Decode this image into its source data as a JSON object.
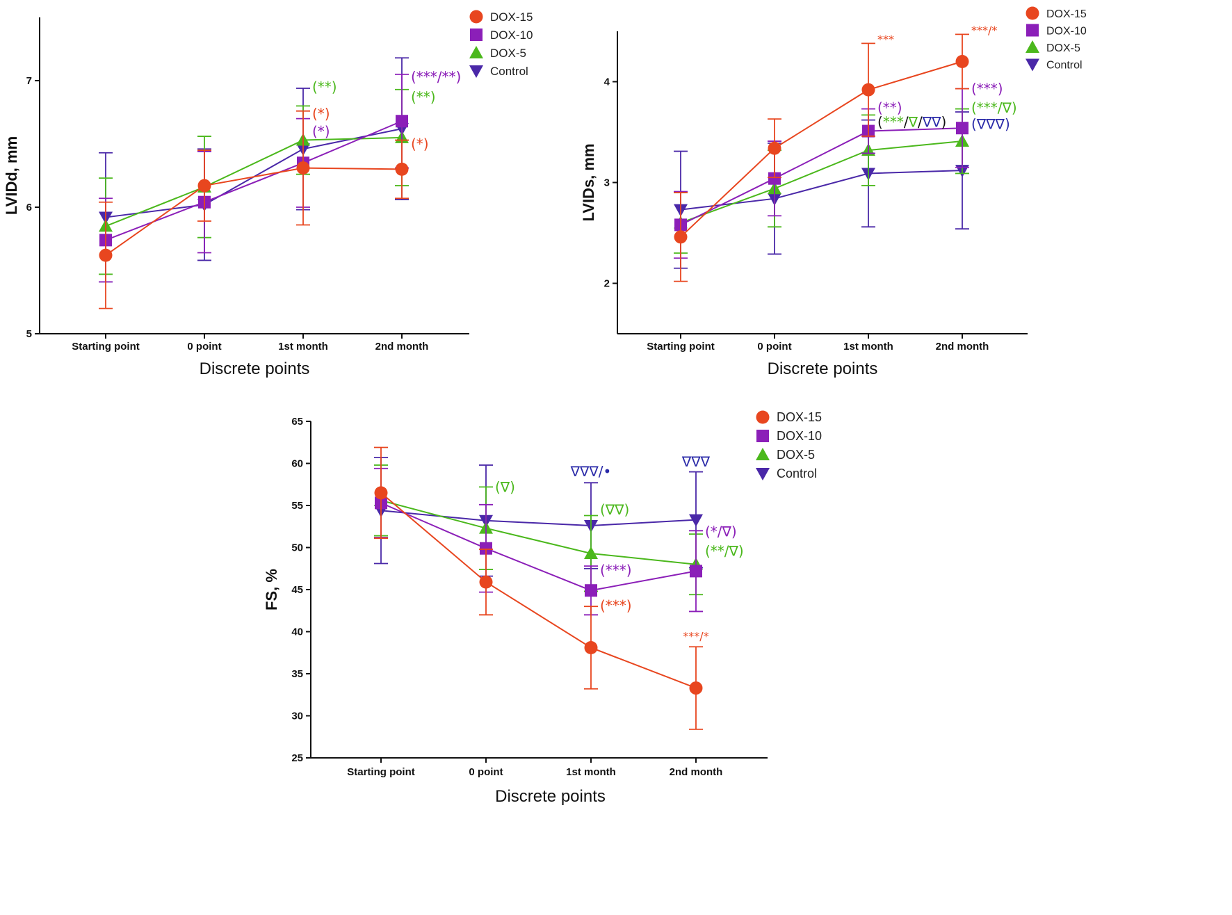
{
  "colors": {
    "DOX-15": "#e8461f",
    "DOX-10": "#8b1fb8",
    "DOX-5": "#4bb81c",
    "Control": "#4a28a8",
    "annot_blue": "#2a2aa8",
    "annot_dark": "#111111"
  },
  "chart_data": [
    {
      "type": "line",
      "id": "lvidd",
      "xlabel": "Discrete points",
      "ylabel": "LVIDd, mm",
      "categories": [
        "Starting point",
        "0 point",
        "1st month",
        "2nd month"
      ],
      "ylim": [
        5,
        7.5
      ],
      "yticks": [
        5,
        6,
        7
      ],
      "legend": "top-right",
      "series": [
        {
          "name": "DOX-15",
          "marker": "circle",
          "values": [
            5.62,
            6.17,
            6.31,
            6.3
          ],
          "err": [
            0.42,
            0.28,
            0.45,
            0.23
          ]
        },
        {
          "name": "DOX-10",
          "marker": "square",
          "values": [
            5.74,
            6.04,
            6.35,
            6.68
          ],
          "err": [
            0.33,
            0.4,
            0.35,
            0.37
          ]
        },
        {
          "name": "DOX-5",
          "marker": "triangle",
          "values": [
            5.85,
            6.16,
            6.53,
            6.55
          ],
          "err": [
            0.38,
            0.4,
            0.27,
            0.38
          ]
        },
        {
          "name": "Control",
          "marker": "triangle-down",
          "values": [
            5.92,
            6.02,
            6.46,
            6.62
          ],
          "err": [
            0.51,
            0.44,
            0.48,
            0.56
          ]
        }
      ],
      "annotations": [
        {
          "text": "(**)",
          "series": "DOX-5",
          "cat": 2,
          "y": 6.95
        },
        {
          "text": "(*)",
          "series": "DOX-15",
          "cat": 2,
          "y": 6.74
        },
        {
          "text": "(*)",
          "series": "DOX-10",
          "cat": 2,
          "y": 6.6
        },
        {
          "text": "(***/**)",
          "series": "DOX-10",
          "cat": 3,
          "y": 7.03
        },
        {
          "text": "(**)",
          "series": "DOX-5",
          "cat": 3,
          "y": 6.87
        },
        {
          "text": "(*)",
          "series": "DOX-15",
          "cat": 3,
          "y": 6.5
        }
      ]
    },
    {
      "type": "line",
      "id": "lvids",
      "xlabel": "Discrete points",
      "ylabel": "LVIDs, mm",
      "categories": [
        "Starting point",
        "0 point",
        "1st month",
        "2nd month"
      ],
      "ylim": [
        1.5,
        4.5
      ],
      "yticks": [
        2,
        3,
        4
      ],
      "legend": "top-right",
      "series": [
        {
          "name": "DOX-15",
          "marker": "circle",
          "values": [
            2.46,
            3.34,
            3.92,
            4.2
          ],
          "err": [
            0.44,
            0.29,
            0.46,
            0.27
          ]
        },
        {
          "name": "DOX-10",
          "marker": "square",
          "values": [
            2.58,
            3.04,
            3.51,
            3.54
          ],
          "err": [
            0.33,
            0.37,
            0.22,
            0.39
          ]
        },
        {
          "name": "DOX-5",
          "marker": "triangle",
          "values": [
            2.6,
            2.94,
            3.32,
            3.41
          ],
          "err": [
            0.3,
            0.38,
            0.35,
            0.32
          ]
        },
        {
          "name": "Control",
          "marker": "triangle-down",
          "values": [
            2.73,
            2.84,
            3.09,
            3.12
          ],
          "err": [
            0.58,
            0.55,
            0.53,
            0.58
          ]
        }
      ],
      "annotations": [
        {
          "text": "***",
          "series": "DOX-15",
          "cat": 2,
          "y": 4.43,
          "size": "small"
        },
        {
          "text": "***/*",
          "series": "DOX-15",
          "cat": 3,
          "y": 4.52,
          "size": "small"
        },
        {
          "text": "(**)",
          "series": "DOX-10",
          "cat": 2,
          "y": 3.74
        },
        {
          "text": "(***)",
          "series": "DOX-10",
          "cat": 3,
          "y": 3.93
        },
        {
          "text": "(***/∇)",
          "series": "DOX-5",
          "cat": 3,
          "y": 3.74
        }
      ],
      "annotations_mixed": [
        {
          "cat": 2,
          "y": 3.6,
          "parts": [
            {
              "text": "(",
              "series": "annot_dark"
            },
            {
              "text": "***",
              "series": "DOX-5"
            },
            {
              "text": "/",
              "series": "annot_dark"
            },
            {
              "text": "∇",
              "series": "DOX-5"
            },
            {
              "text": "/",
              "series": "annot_dark"
            },
            {
              "text": "∇∇",
              "series": "annot_blue"
            },
            {
              "text": ")",
              "series": "annot_dark"
            }
          ]
        },
        {
          "cat": 3,
          "y": 3.58,
          "parts": [
            {
              "text": "(∇∇∇)",
              "series": "annot_blue"
            }
          ]
        }
      ]
    },
    {
      "type": "line",
      "id": "fs",
      "xlabel": "Discrete points",
      "ylabel": "FS, %",
      "categories": [
        "Starting point",
        "0 point",
        "1st month",
        "2nd month"
      ],
      "ylim": [
        25,
        65
      ],
      "yticks": [
        25,
        30,
        35,
        40,
        45,
        50,
        55,
        60,
        65
      ],
      "legend": "top-right",
      "series": [
        {
          "name": "DOX-15",
          "marker": "circle",
          "values": [
            56.5,
            45.9,
            38.1,
            33.3
          ],
          "err": [
            5.4,
            3.9,
            4.9,
            4.9
          ]
        },
        {
          "name": "DOX-10",
          "marker": "square",
          "values": [
            55.3,
            49.9,
            44.9,
            47.2
          ],
          "err": [
            4.1,
            5.2,
            2.9,
            4.8
          ]
        },
        {
          "name": "DOX-5",
          "marker": "triangle",
          "values": [
            55.6,
            52.3,
            49.3,
            48.0
          ],
          "err": [
            4.2,
            4.9,
            4.5,
            3.6
          ]
        },
        {
          "name": "Control",
          "marker": "triangle-down",
          "values": [
            54.4,
            53.2,
            52.6,
            53.3
          ],
          "err": [
            6.3,
            6.6,
            5.1,
            5.7
          ]
        }
      ],
      "annotations": [
        {
          "text": "(∇)",
          "series": "DOX-5",
          "cat": 1,
          "y": 57.2
        },
        {
          "text": "∇∇∇/•",
          "series": "annot_blue",
          "cat": 2,
          "y": 58.9,
          "anchor": "middle",
          "dy": -2
        },
        {
          "text": "(∇∇)",
          "series": "DOX-5",
          "cat": 2,
          "y": 54.5
        },
        {
          "text": "(***)",
          "series": "DOX-10",
          "cat": 2,
          "y": 47.3
        },
        {
          "text": "(***)",
          "series": "DOX-15",
          "cat": 2,
          "y": 43.1
        },
        {
          "text": "∇∇∇",
          "series": "annot_blue",
          "cat": 3,
          "y": 60.2,
          "anchor": "middle"
        },
        {
          "text": "(*/∇)",
          "series": "DOX-10",
          "cat": 3,
          "y": 51.9
        },
        {
          "text": "(**/∇)",
          "series": "DOX-5",
          "cat": 3,
          "y": 49.6
        },
        {
          "text": "***/*",
          "series": "DOX-15",
          "cat": 3,
          "y": 39.6,
          "anchor": "middle",
          "size": "small"
        }
      ]
    }
  ]
}
